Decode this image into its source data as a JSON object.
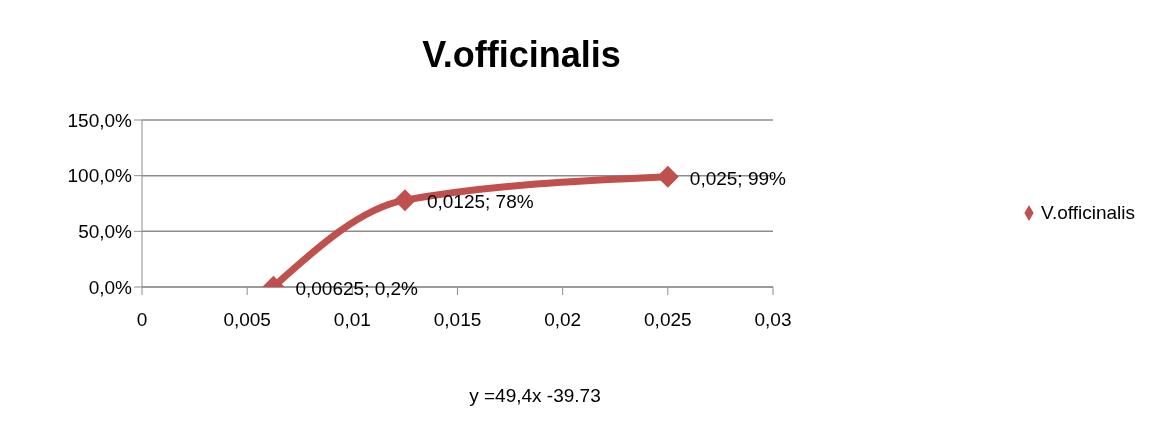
{
  "chart_data": {
    "type": "line",
    "title": "V.officinalis",
    "x": [
      0.00625,
      0.0125,
      0.025
    ],
    "series": [
      {
        "name": "V.officinalis",
        "color": "#c0504d",
        "values": [
          0.2,
          78,
          99
        ],
        "value_labels": [
          "0,00625; 0,2%",
          "0,0125; 78%",
          "0,025; 99%"
        ]
      }
    ],
    "xlim": [
      0,
      0.03
    ],
    "xticks": [
      0,
      {
        "value": 0.005,
        "label": "0,005"
      },
      {
        "value": 0.01,
        "label": "0,01"
      },
      {
        "value": 0.015,
        "label": "0,015"
      },
      {
        "value": 0.02,
        "label": "0,02"
      },
      {
        "value": 0.025,
        "label": "0,025"
      },
      {
        "value": 0.03,
        "label": "0,03"
      }
    ],
    "ylim": [
      0,
      150
    ],
    "yticks": [
      {
        "value": 0,
        "label": "0,0%"
      },
      {
        "value": 50,
        "label": "50,0%"
      },
      {
        "value": 100,
        "label": "100,0%"
      },
      {
        "value": 150,
        "label": "150,0%"
      }
    ],
    "grid": "y",
    "legend": "right",
    "marker": "diamond",
    "line_style": "solid",
    "annotations": [
      "y =49,4x -39.73"
    ]
  }
}
